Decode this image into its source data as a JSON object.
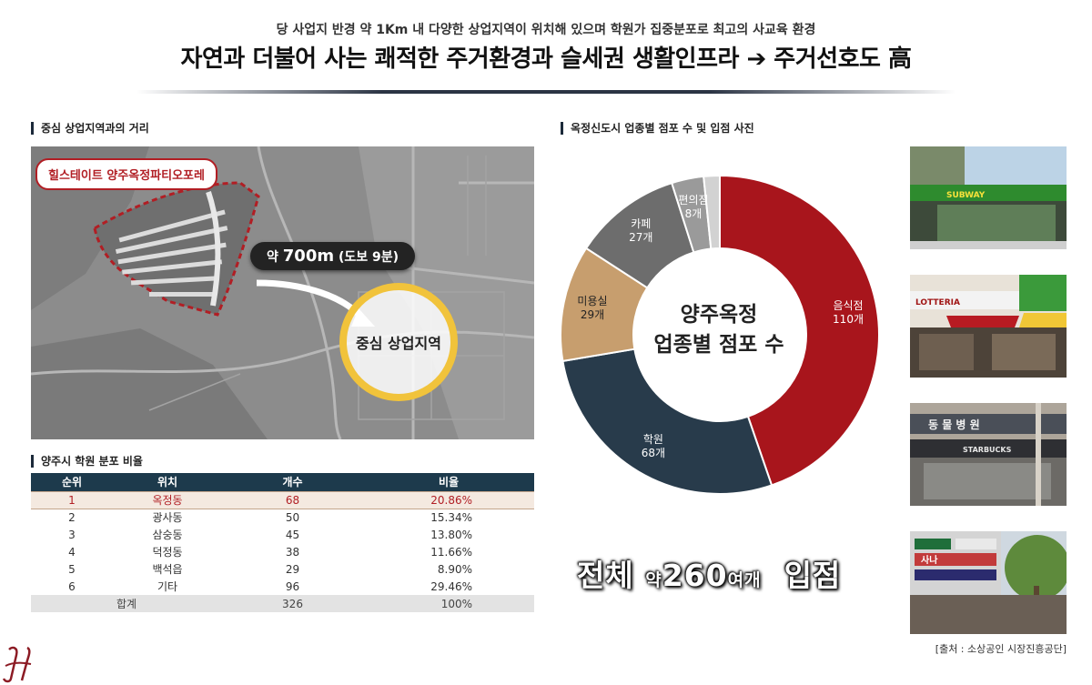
{
  "header": {
    "subtitle": "당 사업지 반경 약 1Km 내 다양한 상업지역이 위치해 있으며 학원가 집중분포로 최고의 사교육 환경",
    "title": "자연과 더불어 사는 쾌적한 주거환경과 슬세권 생활인프라 ➔ 주거선호도 高"
  },
  "map_section": {
    "label": "중심 상업지역과의 거리",
    "complex_name": "힐스테이트 양주옥정파티오포레",
    "distance_prefix": "약",
    "distance_value": "700m",
    "distance_note": "(도보 9분)",
    "center_label": "중심 상업지역"
  },
  "table_section": {
    "label": "양주시 학원 분포 비율",
    "headers": [
      "순위",
      "위치",
      "개수",
      "비율"
    ],
    "rows": [
      [
        "1",
        "옥정동",
        "68",
        "20.86%"
      ],
      [
        "2",
        "광사동",
        "50",
        "15.34%"
      ],
      [
        "3",
        "삼숭동",
        "45",
        "13.80%"
      ],
      [
        "4",
        "덕정동",
        "38",
        "11.66%"
      ],
      [
        "5",
        "백석읍",
        "29",
        "8.90%"
      ],
      [
        "6",
        "기타",
        "96",
        "29.46%"
      ]
    ],
    "total": [
      "합계",
      "326",
      "100%"
    ]
  },
  "chart_section": {
    "label": "옥정신도시 업종별 점포 수 및 입점 사진",
    "center_line1": "양주옥정",
    "center_line2": "업종별 점포 수",
    "total_prefix": "전체",
    "total_about": "약",
    "total_value": "260",
    "total_unit": "여개",
    "total_suffix": "입점",
    "source": "[출처 : 소상공인 시장진흥공단]",
    "photo_signs": [
      "SUBWAY",
      "LOTTERIA",
      "동 물 병 원",
      "STARBUCKS",
      "사나"
    ]
  },
  "chart_data": {
    "type": "pie",
    "series": [
      {
        "name": "음식점",
        "label": "110개",
        "value": 110,
        "color": "#a8151c"
      },
      {
        "name": "학원",
        "label": "68개",
        "value": 68,
        "color": "#283b4b"
      },
      {
        "name": "미용실",
        "label": "29개",
        "value": 29,
        "color": "#c79e6e"
      },
      {
        "name": "카페",
        "label": "27개",
        "value": 27,
        "color": "#6d6d6d"
      },
      {
        "name": "편의점",
        "label": "8개",
        "value": 8,
        "color": "#9a9a9a"
      },
      {
        "name": "",
        "label": "",
        "value": 4,
        "color": "#d2d2d2"
      }
    ]
  }
}
